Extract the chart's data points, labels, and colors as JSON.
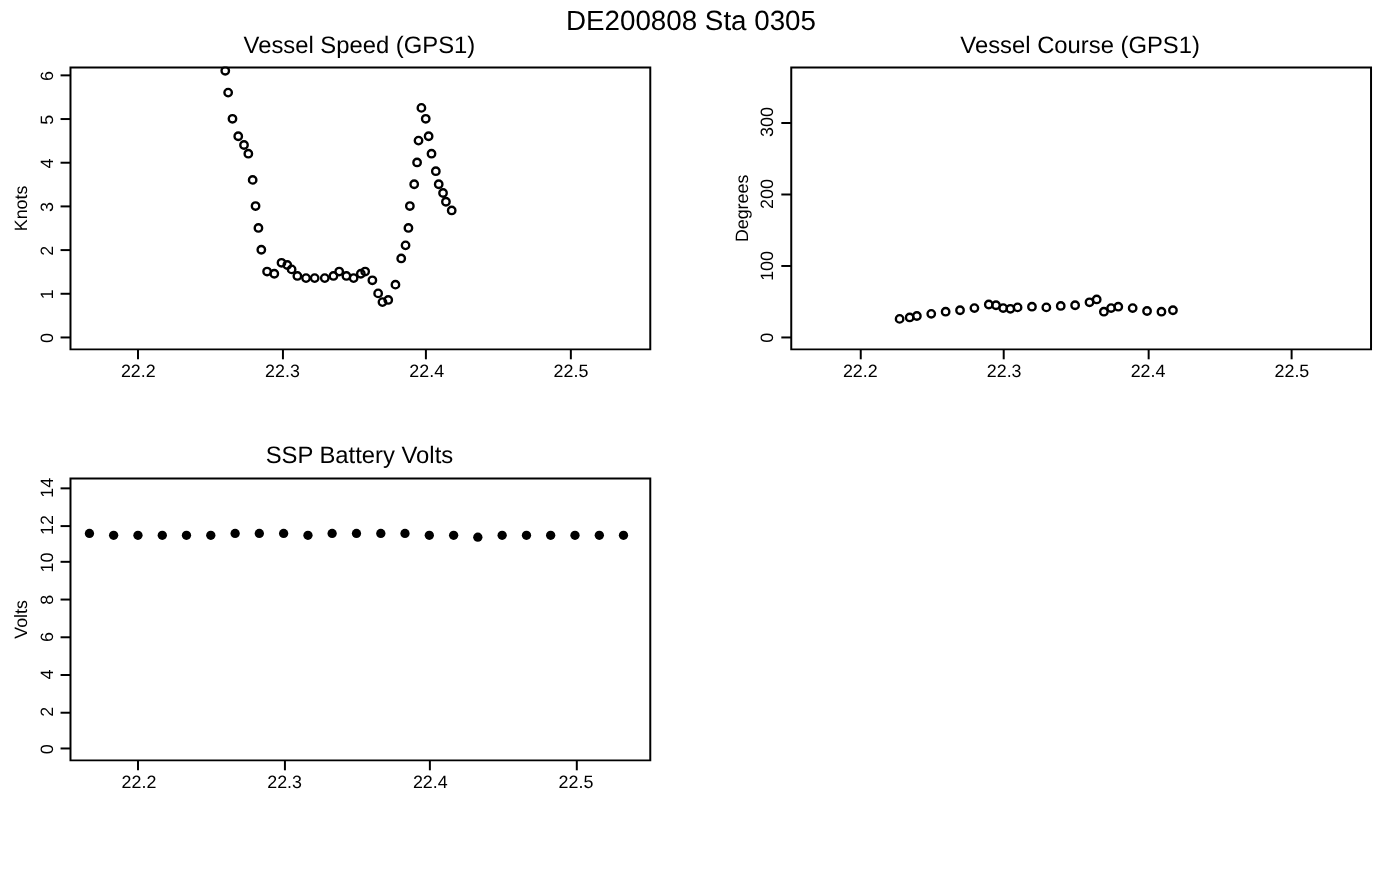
{
  "chart_data": [
    {
      "type": "scatter",
      "title": "Vessel Speed (GPS1)",
      "ylabel": "Knots",
      "annotations": [
        "DE200808 Sta 0305"
      ],
      "marker": "circle",
      "grid": false,
      "xlim": [
        22.153,
        22.555
      ],
      "xticks": [
        22.2,
        22.3,
        22.4,
        22.5
      ],
      "ylim": [
        -0.26,
        6.2
      ],
      "yticks": [
        0,
        1,
        2,
        3,
        4,
        5,
        6
      ],
      "series": [
        {
          "color": "#000000",
          "x": [
            22.261,
            22.263,
            22.266,
            22.27,
            22.274,
            22.277,
            22.28,
            22.282,
            22.284,
            22.286,
            22.29,
            22.295,
            22.3,
            22.304,
            22.307,
            22.311,
            22.317,
            22.323,
            22.33,
            22.336,
            22.34,
            22.345,
            22.35,
            22.355,
            22.358,
            22.363,
            22.367,
            22.37,
            22.374,
            22.379,
            22.383,
            22.386,
            22.388,
            22.389,
            22.392,
            22.394,
            22.395,
            22.397,
            22.4,
            22.402,
            22.404,
            22.407,
            22.409,
            22.412,
            22.414,
            22.418
          ],
          "values": [
            6.1,
            5.6,
            5.0,
            4.6,
            4.4,
            4.2,
            3.6,
            3.0,
            2.5,
            2.0,
            1.5,
            1.45,
            1.7,
            1.65,
            1.55,
            1.4,
            1.35,
            1.35,
            1.35,
            1.4,
            1.5,
            1.4,
            1.35,
            1.45,
            1.5,
            1.3,
            1.0,
            0.8,
            0.85,
            1.2,
            1.8,
            2.1,
            2.5,
            3.0,
            3.5,
            4.0,
            4.5,
            5.25,
            5.0,
            4.6,
            4.2,
            3.8,
            3.5,
            3.3,
            3.1,
            2.9
          ]
        }
      ]
    },
    {
      "type": "scatter",
      "title": "Vessel Course (GPS1)",
      "ylabel": "Degrees",
      "marker": "circle",
      "grid": false,
      "xlim": [
        22.152,
        22.555
      ],
      "xticks": [
        22.2,
        22.3,
        22.4,
        22.5
      ],
      "ylim": [
        -16,
        376
      ],
      "yticks": [
        0,
        100,
        200,
        300
      ],
      "series": [
        {
          "color": "#000000",
          "x": [
            22.228,
            22.235,
            22.24,
            22.25,
            22.26,
            22.27,
            22.28,
            22.29,
            22.295,
            22.3,
            22.305,
            22.31,
            22.32,
            22.33,
            22.34,
            22.35,
            22.36,
            22.365,
            22.37,
            22.375,
            22.38,
            22.39,
            22.4,
            22.41,
            22.418
          ],
          "values": [
            25,
            27,
            29,
            32,
            35,
            37,
            40,
            45,
            44,
            40,
            39,
            41,
            42,
            41,
            43,
            44,
            48,
            52,
            35,
            40,
            42,
            40,
            36,
            35,
            37
          ]
        }
      ]
    },
    {
      "type": "scatter",
      "title": "SSP Battery Volts",
      "ylabel": "Volts",
      "marker": "circle",
      "grid": false,
      "xlim": [
        22.153,
        22.551
      ],
      "xticks": [
        22.2,
        22.3,
        22.4,
        22.5
      ],
      "ylim": [
        -0.6,
        14.5
      ],
      "yticks": [
        0,
        2,
        4,
        6,
        8,
        10,
        12,
        14
      ],
      "series": [
        {
          "color": "#000000",
          "x": [
            22.1667,
            22.1833,
            22.2,
            22.2167,
            22.2333,
            22.25,
            22.2667,
            22.2833,
            22.3,
            22.3167,
            22.3333,
            22.35,
            22.3667,
            22.3833,
            22.4,
            22.4167,
            22.4333,
            22.45,
            22.4667,
            22.4833,
            22.5,
            22.5167,
            22.5333
          ],
          "values": [
            11.5,
            11.4,
            11.4,
            11.4,
            11.4,
            11.4,
            11.5,
            11.5,
            11.5,
            11.4,
            11.5,
            11.5,
            11.5,
            11.5,
            11.4,
            11.4,
            11.3,
            11.4,
            11.4,
            11.4,
            11.4,
            11.4,
            11.4
          ]
        }
      ]
    }
  ]
}
